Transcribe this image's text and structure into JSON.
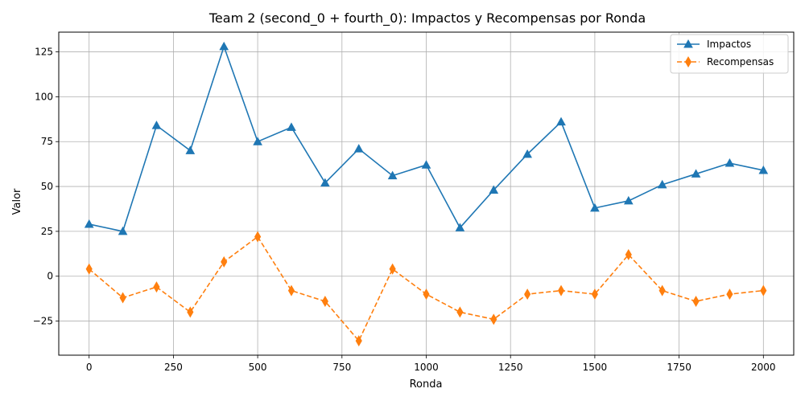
{
  "chart_data": {
    "type": "line",
    "title": "Team 2 (second_0 + fourth_0): Impactos y Recompensas por Ronda",
    "xlabel": "Ronda",
    "ylabel": "Valor",
    "xlim": [
      -90,
      2090
    ],
    "ylim": [
      -44,
      136
    ],
    "x_ticks": [
      0,
      250,
      500,
      750,
      1000,
      1250,
      1500,
      1750,
      2000
    ],
    "y_ticks": [
      -25,
      0,
      25,
      50,
      75,
      100,
      125
    ],
    "x_tick_labels": [
      "0",
      "250",
      "500",
      "750",
      "1000",
      "1250",
      "1500",
      "1750",
      "2000"
    ],
    "y_tick_labels": [
      "−25",
      "0",
      "25",
      "50",
      "75",
      "100",
      "125"
    ],
    "grid": true,
    "legend_position": "top-right",
    "x": [
      0,
      100,
      200,
      300,
      400,
      500,
      600,
      700,
      800,
      900,
      1000,
      1100,
      1200,
      1300,
      1400,
      1500,
      1600,
      1700,
      1800,
      1900,
      2000
    ],
    "series": [
      {
        "name": "Impactos",
        "color": "#1f77b4",
        "marker": "triangle",
        "linestyle": "solid",
        "values": [
          29,
          25,
          84,
          70,
          128,
          75,
          83,
          52,
          71,
          56,
          62,
          27,
          48,
          68,
          86,
          38,
          42,
          51,
          57,
          63,
          59
        ]
      },
      {
        "name": "Recompensas",
        "color": "#ff7f0e",
        "marker": "diamond",
        "linestyle": "dashed",
        "values": [
          4,
          -12,
          -6,
          -20,
          8,
          22,
          -8,
          -14,
          -36,
          4,
          -10,
          -20,
          -24,
          -10,
          -8,
          -10,
          12,
          -8,
          -14,
          -10,
          -8
        ]
      }
    ]
  }
}
